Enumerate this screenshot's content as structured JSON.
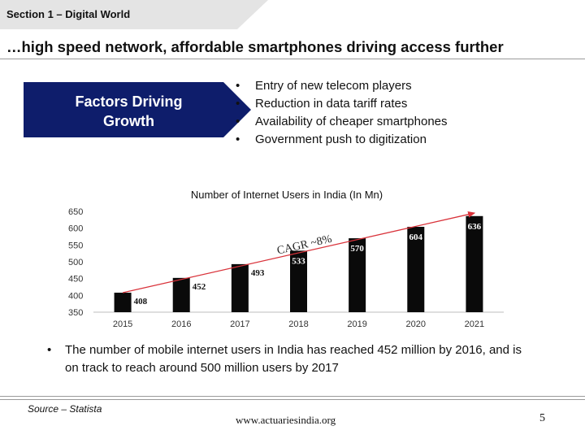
{
  "section": {
    "label": "Section 1 – Digital World"
  },
  "headline": "…high speed network, affordable smartphones driving access further",
  "factors": {
    "title_line1": "Factors Driving",
    "title_line2": "Growth",
    "items": [
      "Entry of new telecom players",
      "Reduction in data tariff rates",
      "Availability of cheaper smartphones",
      "Government push to digitization"
    ]
  },
  "colors": {
    "navy": "#0e1d6b",
    "bar": "#0a0a0a",
    "trend": "#d9323a",
    "section_tab": "#e4e4e4"
  },
  "chart_data": {
    "type": "bar",
    "title": "Number of Internet Users in India (In Mn)",
    "categories": [
      "2015",
      "2016",
      "2017",
      "2018",
      "2019",
      "2020",
      "2021"
    ],
    "values": [
      408,
      452,
      493,
      533,
      570,
      604,
      636
    ],
    "yticks": [
      350,
      400,
      450,
      500,
      550,
      600,
      650
    ],
    "ylim": [
      350,
      650
    ],
    "xlabel": "",
    "ylabel": "",
    "annotation": "CAGR ~8%",
    "trend_arrow": {
      "from": {
        "x": "2015",
        "y": 408
      },
      "to": {
        "x": "2021",
        "y": 645
      }
    }
  },
  "note": "The number of mobile internet users in India has reached 452 million by 2016, and is on track to reach around 500 million users by 2017",
  "footer": {
    "source": "Source – Statista",
    "website": "www.actuariesindia.org",
    "page": "5"
  }
}
